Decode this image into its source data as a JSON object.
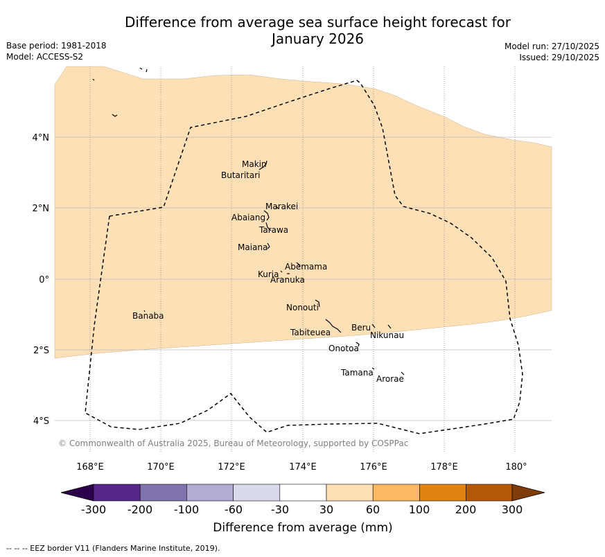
{
  "header": {
    "title_line1": "Difference from average sea surface height forecast for",
    "title_line2": "January 2026",
    "base_period": "Base period: 1981-2018",
    "model": "Model: ACCESS-S2",
    "model_run": "Model run: 27/10/2025",
    "issued": "Issued: 29/10/2025"
  },
  "map": {
    "lon_labels": [
      "168°E",
      "170°E",
      "172°E",
      "174°E",
      "176°E",
      "178°E",
      "180°"
    ],
    "lat_labels": [
      "4°N",
      "2°N",
      "0°",
      "2°S",
      "4°S"
    ],
    "copyright": "© Commonwealth of Australia 2025, Bureau of Meteorology, supported by COSPPac",
    "islands": [
      {
        "name": "Makin"
      },
      {
        "name": "Butaritari"
      },
      {
        "name": "Marakei"
      },
      {
        "name": "Abaiang"
      },
      {
        "name": "Tarawa"
      },
      {
        "name": "Maiana"
      },
      {
        "name": "Abemama"
      },
      {
        "name": "Kuria"
      },
      {
        "name": "Aranuka"
      },
      {
        "name": "Nonouti"
      },
      {
        "name": "Banaba"
      },
      {
        "name": "Beru"
      },
      {
        "name": "Nikunau"
      },
      {
        "name": "Tabiteuea"
      },
      {
        "name": "Onotoa"
      },
      {
        "name": "Tamana"
      },
      {
        "name": "Arorae"
      }
    ]
  },
  "legend": {
    "title": "Difference from average (mm)",
    "ticks": [
      "-300",
      "-200",
      "-100",
      "-60",
      "-30",
      "30",
      "60",
      "100",
      "200",
      "300"
    ],
    "colors": {
      "below_min": "#2d004b",
      "bins": [
        "#542788",
        "#8073ac",
        "#b2abd2",
        "#d8daeb",
        "#ffffff",
        "#fee0b6",
        "#fdb863",
        "#e08214",
        "#b35806"
      ],
      "above_max": "#7f3b08"
    }
  },
  "footer": {
    "eez_note": "--  --  -- EEZ border V11 (Flanders Marine Institute, 2019)."
  }
}
